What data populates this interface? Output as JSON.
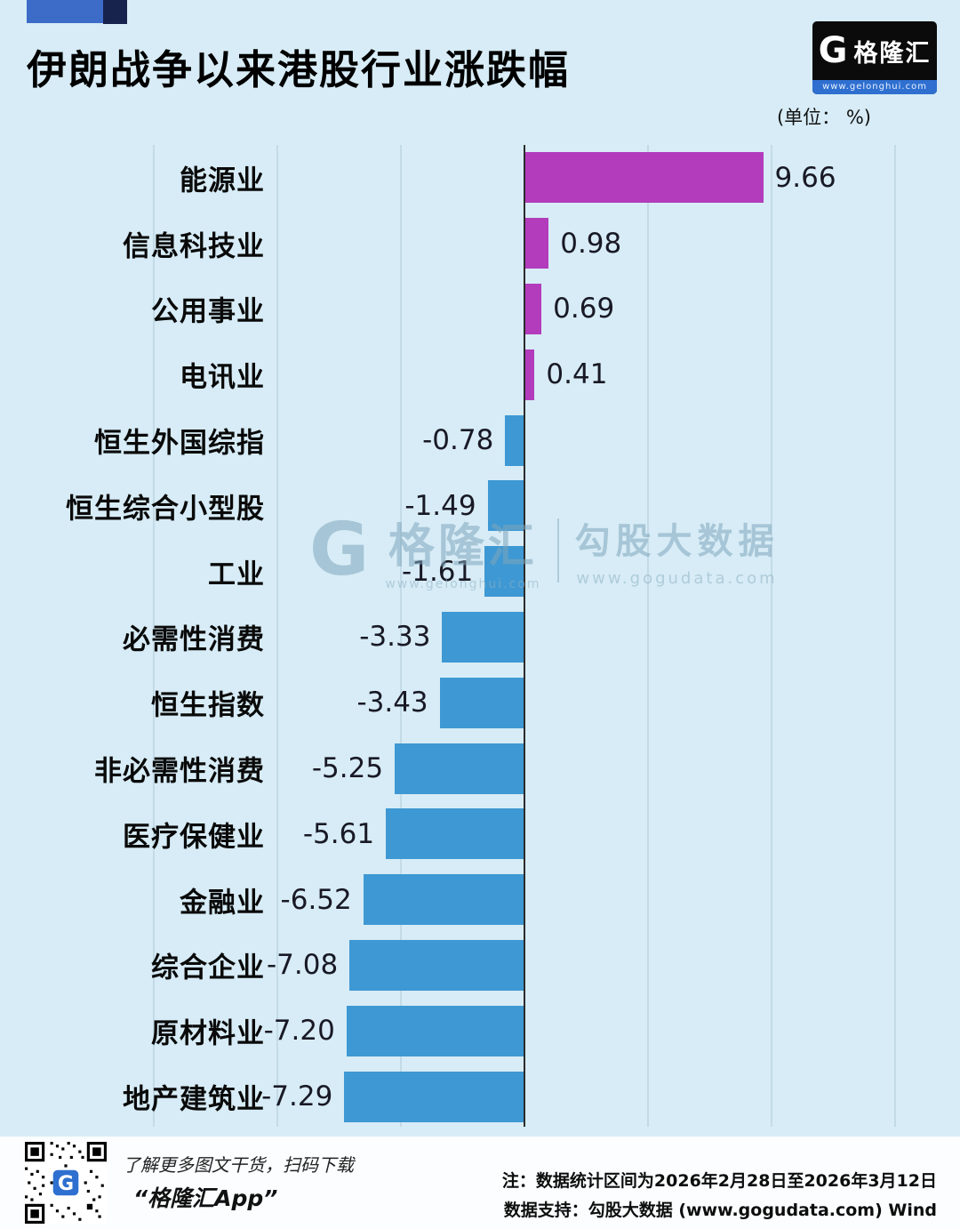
{
  "page": {
    "title": "伊朗战争以来港股行业涨跌幅",
    "unit_label": "(单位： %)"
  },
  "logo": {
    "g": "G",
    "name": "格隆汇",
    "url": "www.gelonghui.com"
  },
  "watermark": {
    "g": "G",
    "name": "格隆汇",
    "name_url": "www.gelonghui.com",
    "right": "勾股大数据",
    "right_url": "www.gogudata.com"
  },
  "chart_data": {
    "type": "bar",
    "orientation": "horizontal",
    "title": "伊朗战争以来港股行业涨跌幅",
    "unit": "%",
    "categories": [
      "能源业",
      "信息科技业",
      "公用事业",
      "电讯业",
      "恒生外国综指",
      "恒生综合小型股",
      "工业",
      "必需性消费",
      "恒生指数",
      "非必需性消费",
      "医疗保健业",
      "金融业",
      "综合企业",
      "原材料业",
      "地产建筑业"
    ],
    "values": [
      9.66,
      0.98,
      0.69,
      0.41,
      -0.78,
      -1.49,
      -1.61,
      -3.33,
      -3.43,
      -5.25,
      -5.61,
      -6.52,
      -7.08,
      -7.2,
      -7.29
    ],
    "positive_color": "#b23cbb",
    "negative_color": "#3e98d3",
    "xlim": [
      -15,
      15
    ],
    "x_gridlines": [
      -15,
      -10,
      -5,
      0,
      5,
      10,
      15
    ],
    "grid": true,
    "legend": false
  },
  "footer": {
    "qr_caption1": "了解更多图文干货，扫码下载",
    "qr_caption2": "“格隆汇App”",
    "note1": "注：数据统计区间为2026年2月28日至2026年3月12日",
    "note2": "数据支持：勾股大数据 (www.gogudata.com) Wind"
  }
}
